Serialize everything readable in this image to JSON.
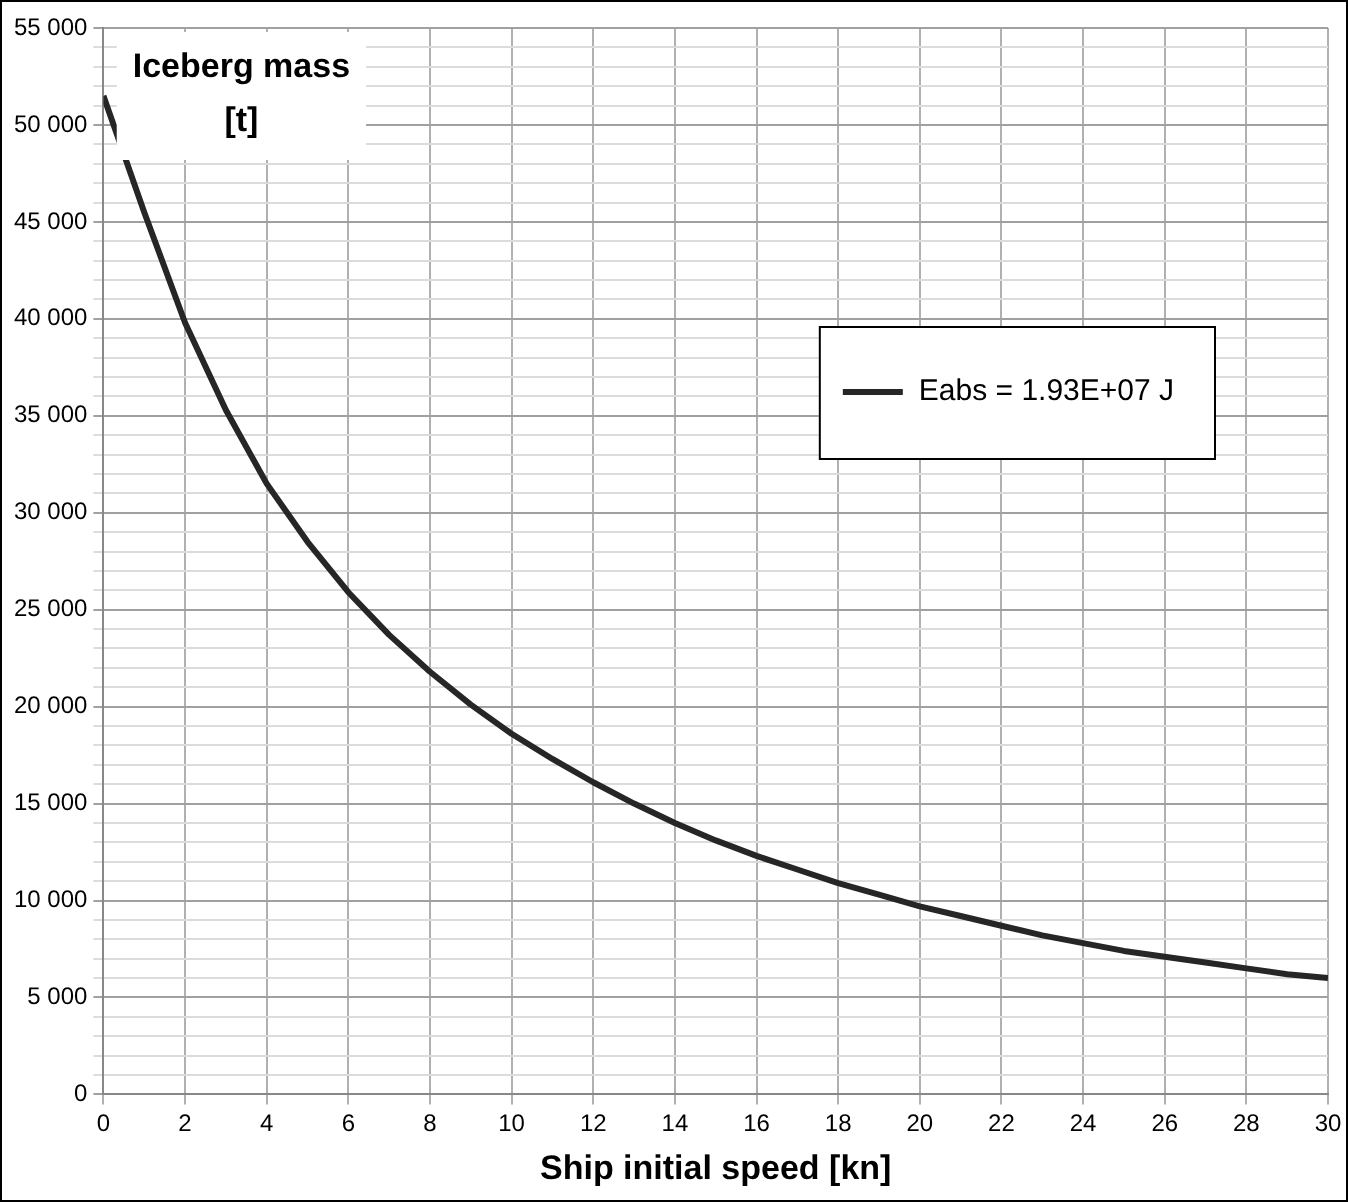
{
  "chart_data": {
    "type": "line",
    "ylabel": "Iceberg mass [t]",
    "xlabel": "Ship initial speed [kn]",
    "x": [
      0,
      1,
      2,
      3,
      4,
      5,
      6,
      7,
      8,
      9,
      10,
      11,
      12,
      13,
      14,
      15,
      16,
      17,
      18,
      19,
      20,
      21,
      22,
      23,
      24,
      25,
      26,
      27,
      28,
      29,
      30
    ],
    "series": [
      {
        "name": "Eabs = 1.93E+07 J",
        "color": "#262626",
        "values": [
          51500,
          45500,
          39800,
          35300,
          31500,
          28500,
          25900,
          23700,
          21800,
          20100,
          18600,
          17300,
          16100,
          15000,
          14000,
          13100,
          12300,
          11600,
          10900,
          10300,
          9700,
          9200,
          8700,
          8200,
          7800,
          7400,
          7100,
          6800,
          6500,
          6200,
          6000
        ]
      }
    ],
    "xlim": [
      0,
      30
    ],
    "xticks": [
      0,
      2,
      4,
      6,
      8,
      10,
      12,
      14,
      16,
      18,
      20,
      22,
      24,
      26,
      28,
      30
    ],
    "ylim": [
      0,
      55000
    ],
    "yticks": [
      {
        "value": 0,
        "label": "0"
      },
      {
        "value": 1000,
        "label": null
      },
      {
        "value": 2000,
        "label": null
      },
      {
        "value": 3000,
        "label": null
      },
      {
        "value": 4000,
        "label": null
      },
      {
        "value": 5000,
        "label": "5 000"
      },
      {
        "value": 6000,
        "label": null
      },
      {
        "value": 7000,
        "label": null
      },
      {
        "value": 8000,
        "label": null
      },
      {
        "value": 9000,
        "label": null
      },
      {
        "value": 10000,
        "label": "10 000"
      },
      {
        "value": 11000,
        "label": null
      },
      {
        "value": 12000,
        "label": null
      },
      {
        "value": 13000,
        "label": null
      },
      {
        "value": 14000,
        "label": null
      },
      {
        "value": 15000,
        "label": "15 000"
      },
      {
        "value": 16000,
        "label": null
      },
      {
        "value": 17000,
        "label": null
      },
      {
        "value": 18000,
        "label": null
      },
      {
        "value": 19000,
        "label": null
      },
      {
        "value": 20000,
        "label": "20 000"
      },
      {
        "value": 21000,
        "label": null
      },
      {
        "value": 22000,
        "label": null
      },
      {
        "value": 23000,
        "label": null
      },
      {
        "value": 24000,
        "label": null
      },
      {
        "value": 25000,
        "label": "25 000"
      },
      {
        "value": 26000,
        "label": null
      },
      {
        "value": 27000,
        "label": null
      },
      {
        "value": 28000,
        "label": null
      },
      {
        "value": 29000,
        "label": null
      },
      {
        "value": 30000,
        "label": "30 000"
      },
      {
        "value": 31000,
        "label": null
      },
      {
        "value": 32000,
        "label": null
      },
      {
        "value": 33000,
        "label": null
      },
      {
        "value": 34000,
        "label": null
      },
      {
        "value": 35000,
        "label": "35 000"
      },
      {
        "value": 36000,
        "label": null
      },
      {
        "value": 37000,
        "label": null
      },
      {
        "value": 38000,
        "label": null
      },
      {
        "value": 39000,
        "label": null
      },
      {
        "value": 40000,
        "label": "40 000"
      },
      {
        "value": 41000,
        "label": null
      },
      {
        "value": 42000,
        "label": null
      },
      {
        "value": 43000,
        "label": null
      },
      {
        "value": 44000,
        "label": null
      },
      {
        "value": 45000,
        "label": "45 000"
      },
      {
        "value": 46000,
        "label": null
      },
      {
        "value": 47000,
        "label": null
      },
      {
        "value": 48000,
        "label": null
      },
      {
        "value": 49000,
        "label": null
      },
      {
        "value": 50000,
        "label": "50 000"
      },
      {
        "value": 51000,
        "label": null
      },
      {
        "value": 52000,
        "label": null
      },
      {
        "value": 53000,
        "label": null
      },
      {
        "value": 54000,
        "label": null
      },
      {
        "value": 55000,
        "label": "55 000"
      }
    ],
    "grid": true,
    "legend": "top right",
    "marker": "none",
    "line_style": "solid"
  }
}
